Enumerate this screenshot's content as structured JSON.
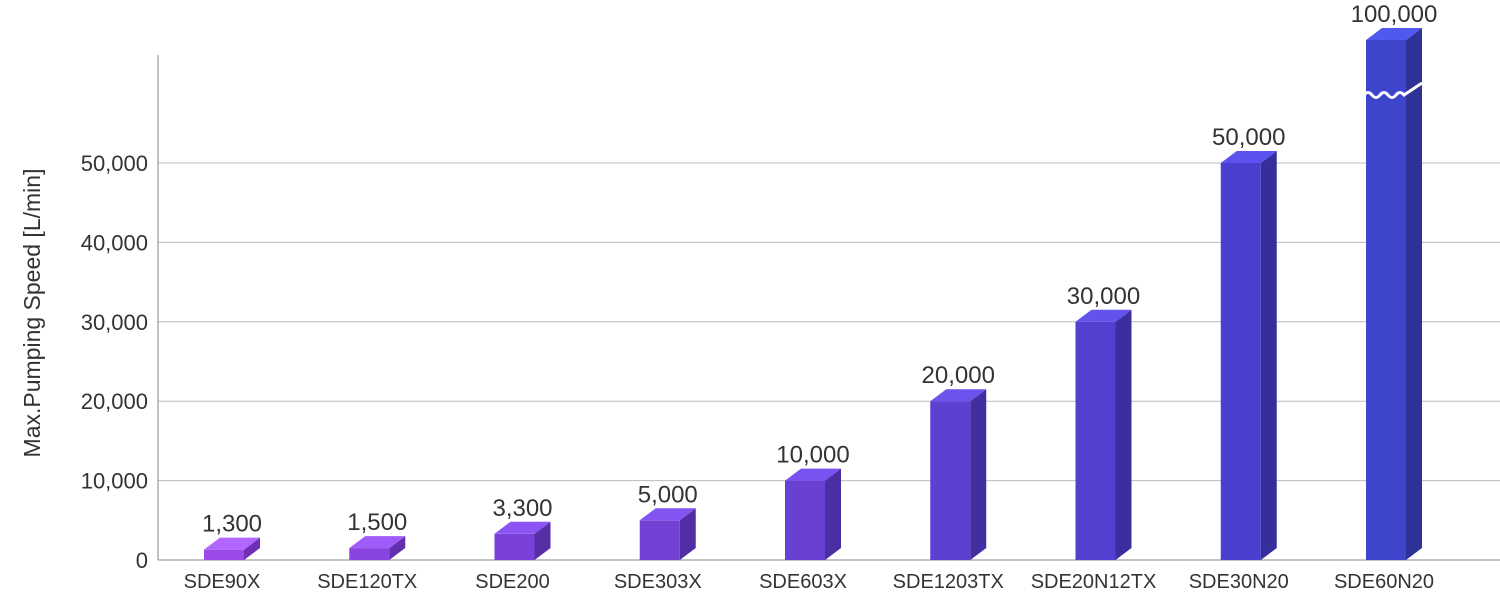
{
  "chart_data": {
    "type": "bar",
    "title": "",
    "xlabel": "",
    "ylabel": "Max.Pumping Speed [L/min]",
    "categories": [
      "SDE90X",
      "SDE120TX",
      "SDE200",
      "SDE303X",
      "SDE603X",
      "SDE1203TX",
      "SDE20N12TX",
      "SDE30N20",
      "SDE60N20"
    ],
    "values": [
      1300,
      1500,
      3300,
      5000,
      10000,
      20000,
      30000,
      50000,
      100000
    ],
    "value_labels": [
      "1,300",
      "1,500",
      "3,300",
      "5,000",
      "10,000",
      "20,000",
      "30,000",
      "50,000",
      "100,000"
    ],
    "ylim": [
      0,
      60000
    ],
    "yticks": [
      0,
      10000,
      20000,
      30000,
      40000,
      50000
    ],
    "ytick_labels": [
      "0",
      "10,000",
      "20,000",
      "30,000",
      "40,000",
      "50,000"
    ],
    "axis_break": {
      "category": "SDE60N20"
    },
    "grid": true,
    "legend": "none",
    "colors": {
      "front": [
        "#9b4ae8",
        "#8a44df",
        "#7b40d8",
        "#7340d4",
        "#6840d2",
        "#5c40d0",
        "#5240d0",
        "#4a40d0",
        "#3e44cc"
      ],
      "top": [
        "#b066ff",
        "#9f5cf8",
        "#8c54f2",
        "#8454f0",
        "#7a52ef",
        "#6e52ee",
        "#6452ee",
        "#5c52ee",
        "#5058ee"
      ],
      "side": [
        "#6e2fb3",
        "#6230ab",
        "#582ea6",
        "#522ea4",
        "#4a2ea2",
        "#422ea0",
        "#3c2e9e",
        "#362e9c",
        "#2e3297"
      ],
      "grid": "#bbbbbb",
      "axis": "#888888",
      "text": "#333333"
    }
  }
}
